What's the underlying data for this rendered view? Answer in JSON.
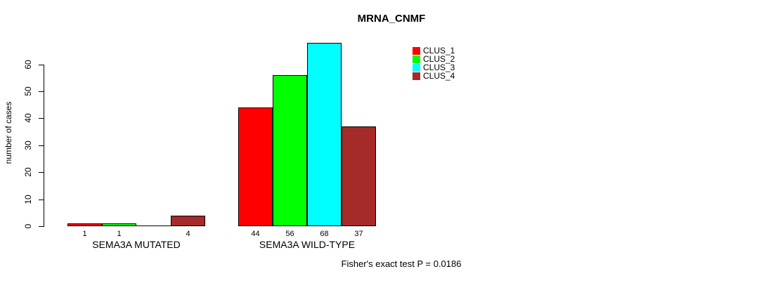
{
  "title": "MRNA_CNMF",
  "y_axis": {
    "label": "number of cases",
    "ticks": [
      0,
      10,
      20,
      30,
      40,
      50,
      60
    ]
  },
  "legend": {
    "items": [
      {
        "label": "CLUS_1",
        "color": "#ff0000"
      },
      {
        "label": "CLUS_2",
        "color": "#00ff00"
      },
      {
        "label": "CLUS_3",
        "color": "#00ffff"
      },
      {
        "label": "CLUS_4",
        "color": "#a52a2a"
      }
    ]
  },
  "footer": "Fisher's exact test P = 0.0186",
  "chart_data": {
    "type": "bar",
    "title": "MRNA_CNMF",
    "ylabel": "number of cases",
    "ylim": [
      0,
      68
    ],
    "yticks": [
      0,
      10,
      20,
      30,
      40,
      50,
      60
    ],
    "grid": false,
    "legend_position": "top-right",
    "series_names": [
      "CLUS_1",
      "CLUS_2",
      "CLUS_3",
      "CLUS_4"
    ],
    "series_colors": [
      "#ff0000",
      "#00ff00",
      "#00ffff",
      "#a52a2a"
    ],
    "groups": [
      {
        "category": "SEMA3A MUTATED",
        "values": [
          1,
          1,
          0,
          4
        ],
        "bar_labels": [
          "1",
          "1",
          "",
          "4"
        ]
      },
      {
        "category": "SEMA3A WILD-TYPE",
        "values": [
          44,
          56,
          68,
          37
        ],
        "bar_labels": [
          "44",
          "56",
          "68",
          "37"
        ]
      }
    ],
    "annotation": "Fisher's exact test P = 0.0186"
  }
}
